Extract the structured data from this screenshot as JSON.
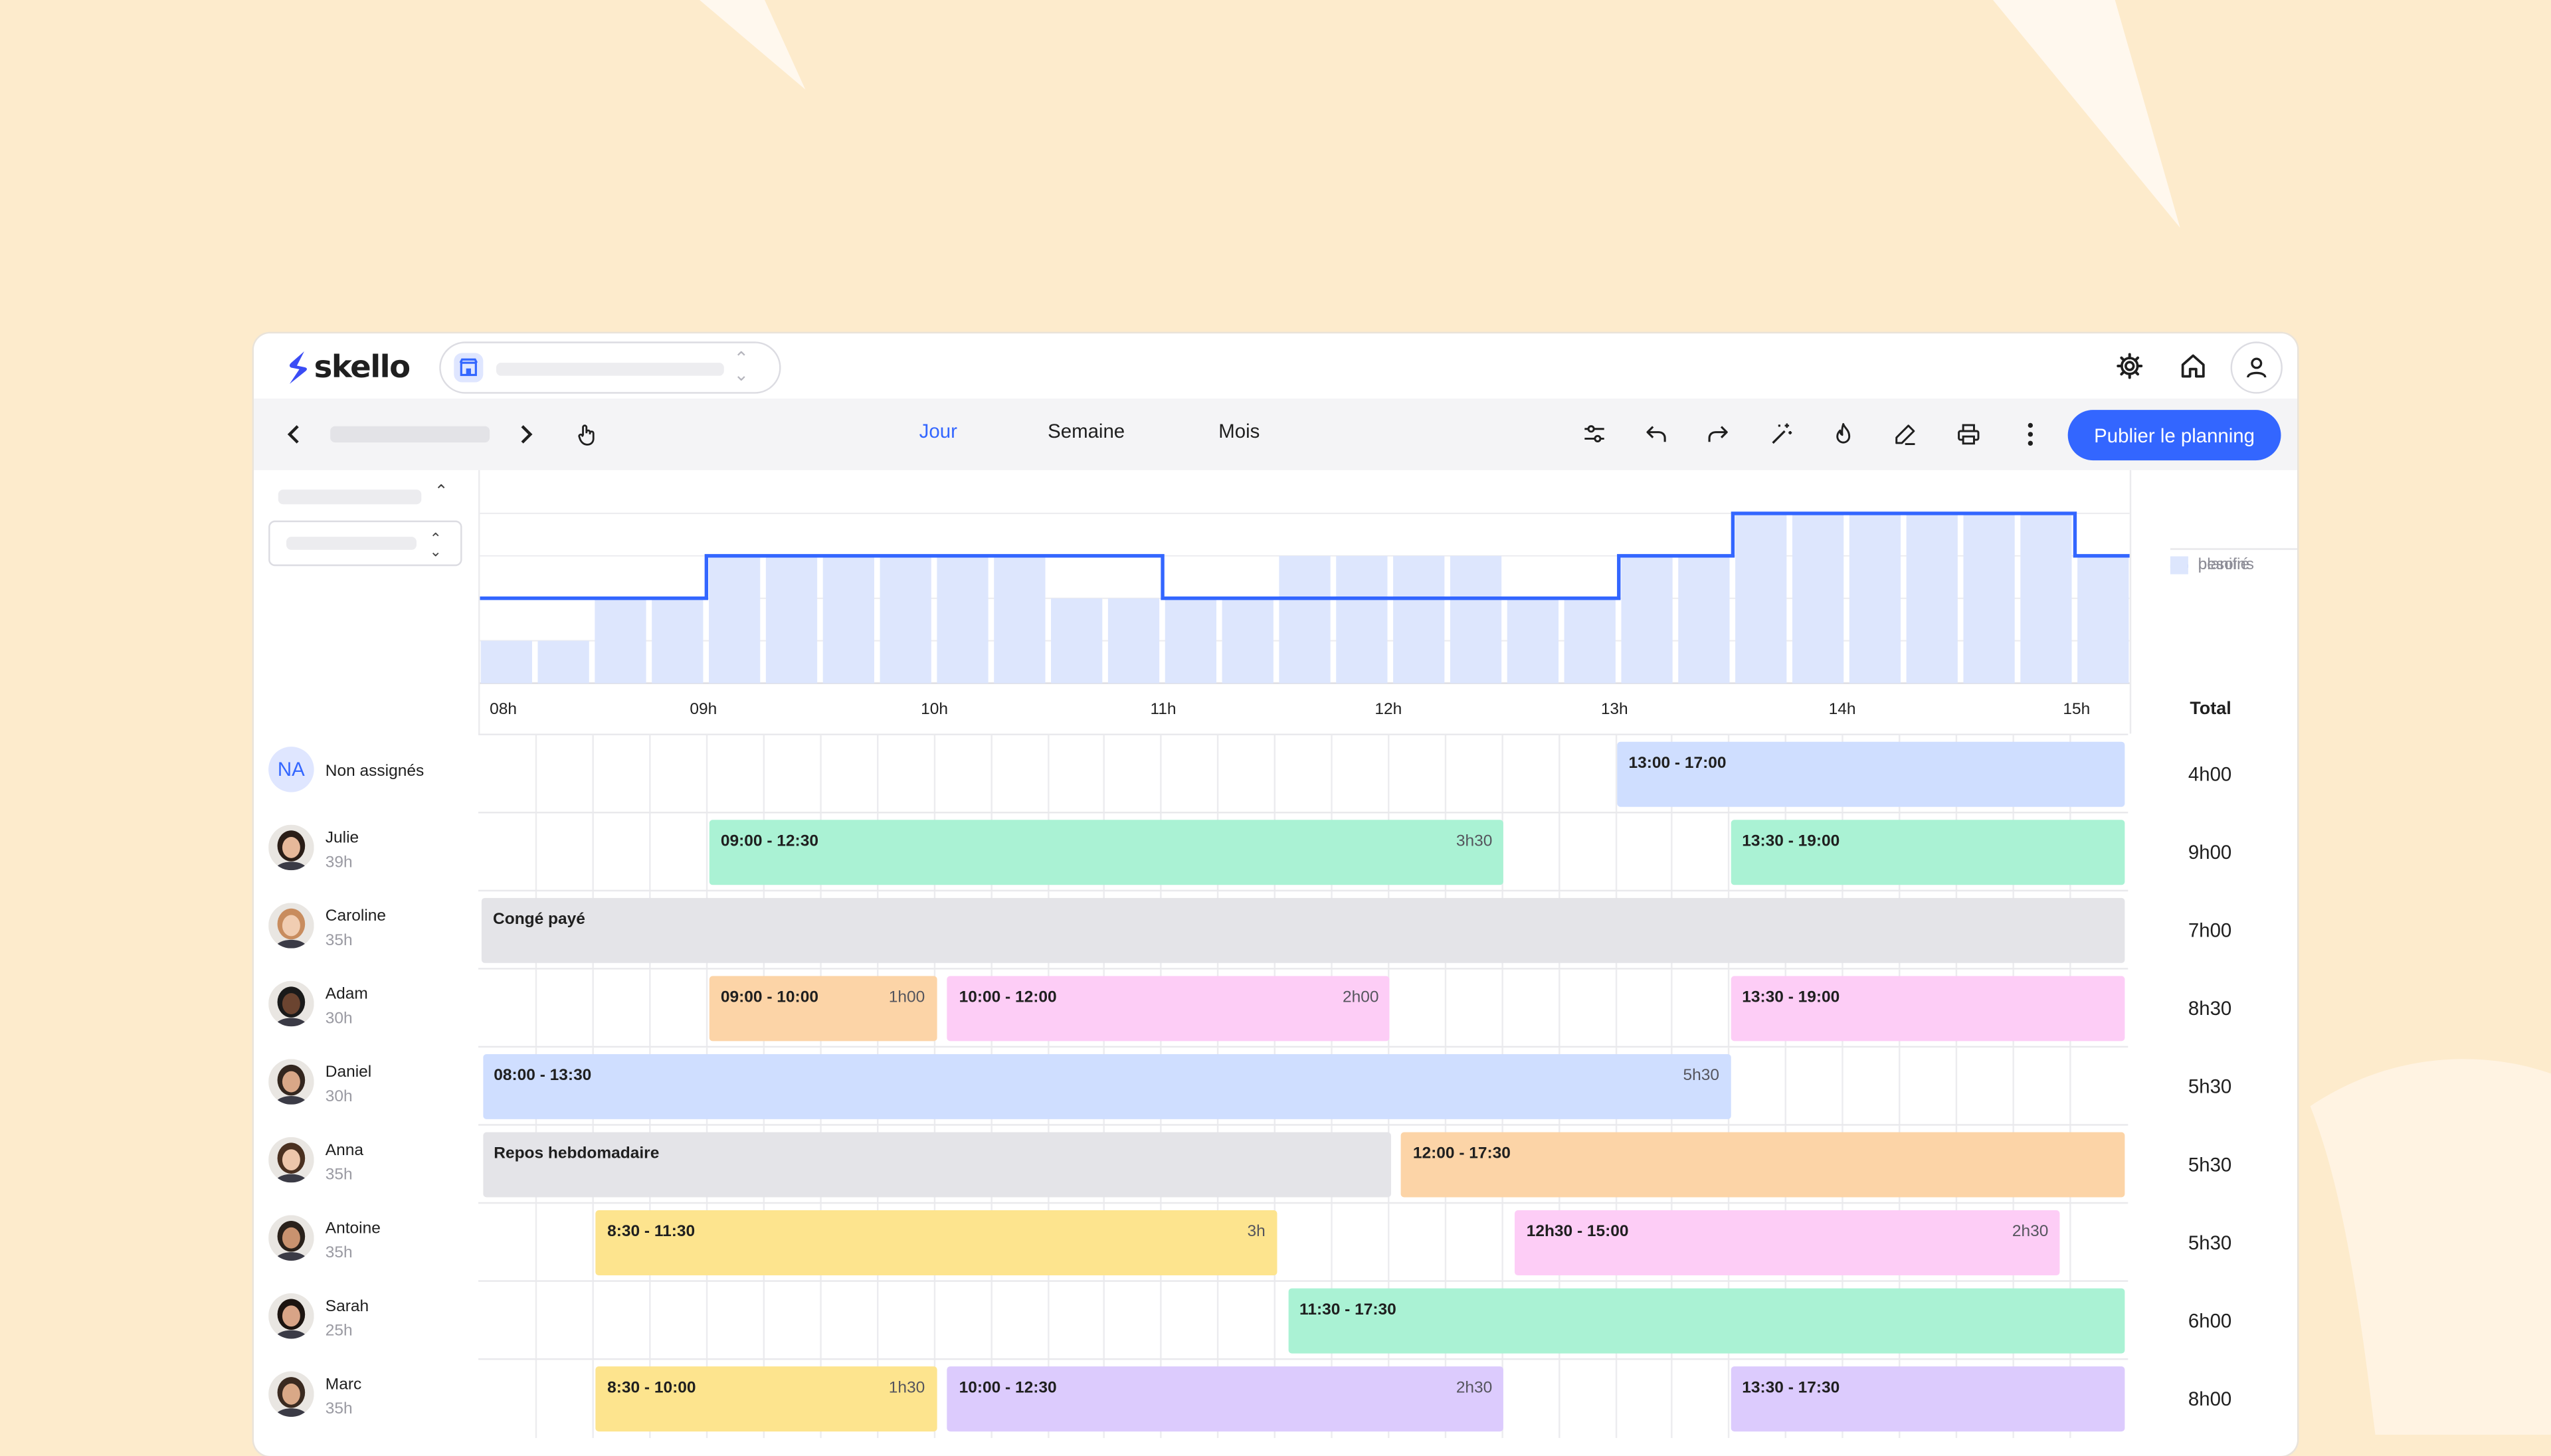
{
  "app": {
    "logo": "skello",
    "colors": {
      "accent": "#3366ff",
      "background": "#fdebcc"
    }
  },
  "header": {
    "icons": [
      "gear-icon",
      "home-icon",
      "user-icon"
    ]
  },
  "toolbar": {
    "tabs": [
      {
        "label": "Jour",
        "active": true
      },
      {
        "label": "Semaine",
        "active": false
      },
      {
        "label": "Mois",
        "active": false
      }
    ],
    "tools": [
      "filter-icon",
      "undo-icon",
      "redo-icon",
      "magic-wand-icon",
      "fire-icon",
      "edit-icon",
      "print-icon",
      "more-vertical-icon"
    ],
    "publish_label": "Publier le planning"
  },
  "chart_data": {
    "type": "bar",
    "x_ticks": [
      "08h",
      "09h",
      "10h",
      "11h",
      "12h",
      "13h",
      "14h",
      "15h"
    ],
    "series": [
      {
        "name": "besoins",
        "type": "step-line",
        "values": [
          2,
          2,
          2,
          2,
          3,
          3,
          3,
          3,
          3,
          3,
          3,
          3,
          2,
          2,
          2,
          2,
          2,
          2,
          2,
          2,
          3,
          3,
          4,
          4,
          4,
          4,
          4,
          4,
          3
        ]
      },
      {
        "name": "planifié",
        "type": "bar",
        "values": [
          1,
          1,
          2,
          2,
          3,
          3,
          3,
          3,
          3,
          3,
          2,
          2,
          2,
          2,
          3,
          3,
          3,
          3,
          2,
          2,
          3,
          3,
          4,
          4,
          4,
          4,
          4,
          4,
          3
        ]
      }
    ],
    "ylim": [
      0,
      4.3
    ]
  },
  "legend": {
    "needs": "besoins",
    "planned": "planifié"
  },
  "total_header": "Total",
  "rows": [
    {
      "initials": "NA",
      "name": "Non assignés",
      "hours": "",
      "total": "4h00",
      "shifts": [
        {
          "label": "13:00 - 17:00",
          "dur": "",
          "start": 13.0,
          "end": 17.0,
          "color": "#cfdeff"
        }
      ]
    },
    {
      "name": "Julie",
      "hours": "39h",
      "total": "9h00",
      "hair": "#2a1d17",
      "skin": "#e6b89a",
      "shifts": [
        {
          "label": "09:00 - 12:30",
          "dur": "3h30",
          "start": 9.0,
          "end": 12.5,
          "color": "#aaf2d4"
        },
        {
          "label": "13:30 - 19:00",
          "dur": "",
          "start": 13.5,
          "end": 19.0,
          "color": "#aaf2d4"
        }
      ]
    },
    {
      "name": "Caroline",
      "hours": "35h",
      "total": "7h00",
      "hair": "#c88c5e",
      "skin": "#f1cdb2",
      "shifts": [
        {
          "label": "Congé payé",
          "dur": "",
          "start": 7.98,
          "end": 16.0,
          "color": "#e4e4e8"
        }
      ]
    },
    {
      "name": "Adam",
      "hours": "30h",
      "total": "8h30",
      "hair": "#1a1a1a",
      "skin": "#6b4430",
      "shifts": [
        {
          "label": "09:00 - 10:00",
          "dur": "1h00",
          "start": 9.0,
          "end": 10.0,
          "color": "#fcd4a7"
        },
        {
          "label": "10:00 - 12:00",
          "dur": "2h00",
          "start": 10.05,
          "end": 12.0,
          "color": "#fdcdf6"
        },
        {
          "label": "13:30 - 19:00",
          "dur": "",
          "start": 13.5,
          "end": 19.0,
          "color": "#fdcdf6"
        }
      ]
    },
    {
      "name": "Daniel",
      "hours": "30h",
      "total": "5h30",
      "hair": "#33261e",
      "skin": "#d9a787",
      "shifts": [
        {
          "label": "08:00 - 13:30",
          "dur": "5h30",
          "start": 8.0,
          "end": 13.5,
          "color": "#cfdeff"
        }
      ]
    },
    {
      "name": "Anna",
      "hours": "35h",
      "total": "5h30",
      "hair": "#4a3020",
      "skin": "#edc6ab",
      "shifts": [
        {
          "label": "Repos hebdomadaire",
          "dur": "",
          "start": 8.0,
          "end": 12.0,
          "color": "#e4e4e8"
        },
        {
          "label": "12:00 - 17:30",
          "dur": "",
          "start": 12.05,
          "end": 17.5,
          "color": "#fcd4a7"
        }
      ]
    },
    {
      "name": "Antoine",
      "hours": "35h",
      "total": "5h30",
      "hair": "#2a211b",
      "skin": "#c9926f",
      "shifts": [
        {
          "label": "8:30 - 11:30",
          "dur": "3h",
          "start": 8.5,
          "end": 11.5,
          "color": "#fde48e"
        },
        {
          "label": "12h30 - 15:00",
          "dur": "2h30",
          "start": 12.55,
          "end": 14.95,
          "color": "#fdcdf6"
        }
      ]
    },
    {
      "name": "Sarah",
      "hours": "25h",
      "total": "6h00",
      "hair": "#1c1410",
      "skin": "#d8a487",
      "shifts": [
        {
          "label": "11:30 - 17:30",
          "dur": "",
          "start": 11.55,
          "end": 17.5,
          "color": "#aaf2d4"
        }
      ]
    },
    {
      "name": "Marc",
      "hours": "35h",
      "total": "8h00",
      "hair": "#3a2a20",
      "skin": "#d9a887",
      "shifts": [
        {
          "label": "8:30 - 10:00",
          "dur": "1h30",
          "start": 8.5,
          "end": 10.0,
          "color": "#fde48e"
        },
        {
          "label": "10:00 - 12:30",
          "dur": "2h30",
          "start": 10.05,
          "end": 12.5,
          "color": "#dccbfd"
        },
        {
          "label": "13:30 - 17:30",
          "dur": "",
          "start": 13.5,
          "end": 17.5,
          "color": "#dccbfd"
        }
      ]
    }
  ]
}
